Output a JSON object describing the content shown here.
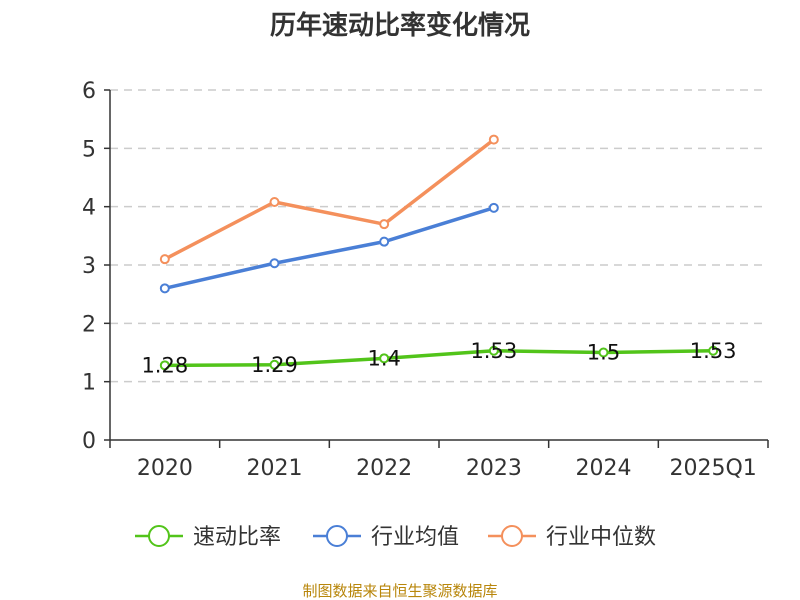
{
  "chart_data": {
    "type": "line",
    "title": "历年速动比率变化情况",
    "categories": [
      "2020",
      "2021",
      "2022",
      "2023",
      "2024",
      "2025Q1"
    ],
    "ylim": [
      0,
      6
    ],
    "yticks": [
      "0",
      "1",
      "2",
      "3",
      "4",
      "5",
      "6"
    ],
    "grid": true,
    "legend_position": "bottom",
    "series": [
      {
        "name": "速动比率",
        "color": "#52c41a",
        "values": [
          1.28,
          1.29,
          1.4,
          1.53,
          1.5,
          1.53
        ],
        "labels": [
          "1.28",
          "1.29",
          "1.4",
          "1.53",
          "1.5",
          "1.53"
        ]
      },
      {
        "name": "行业均值",
        "color": "#4a7fd6",
        "values": [
          2.6,
          3.03,
          3.4,
          3.98,
          null,
          null
        ]
      },
      {
        "name": "行业中位数",
        "color": "#f4905c",
        "values": [
          3.1,
          4.08,
          3.7,
          5.15,
          null,
          null
        ]
      }
    ]
  },
  "source_note": "制图数据来自恒生聚源数据库"
}
